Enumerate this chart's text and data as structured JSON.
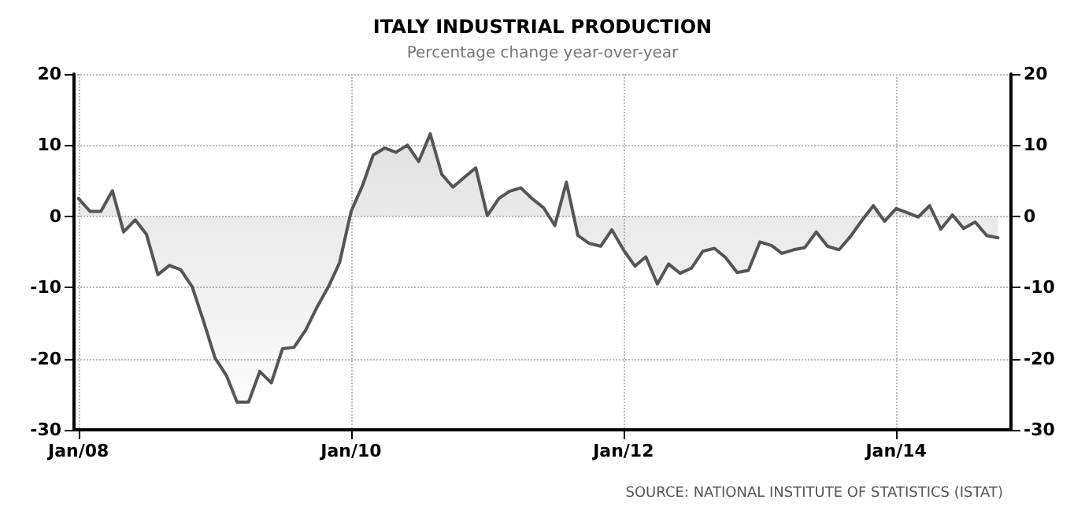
{
  "chart_data": {
    "type": "area",
    "title": "ITALY INDUSTRIAL PRODUCTION",
    "subtitle": "Percentage change year-over-year",
    "annotations": [
      "SOURCE: NATIONAL INSTITUTE OF STATISTICS (ISTAT)"
    ],
    "x": [
      "2008-01",
      "2008-02",
      "2008-03",
      "2008-04",
      "2008-05",
      "2008-06",
      "2008-07",
      "2008-08",
      "2008-09",
      "2008-10",
      "2008-11",
      "2008-12",
      "2009-01",
      "2009-02",
      "2009-03",
      "2009-04",
      "2009-05",
      "2009-06",
      "2009-07",
      "2009-08",
      "2009-09",
      "2009-10",
      "2009-11",
      "2009-12",
      "2010-01",
      "2010-02",
      "2010-03",
      "2010-04",
      "2010-05",
      "2010-06",
      "2010-07",
      "2010-08",
      "2010-09",
      "2010-10",
      "2010-11",
      "2010-12",
      "2011-01",
      "2011-02",
      "2011-03",
      "2011-04",
      "2011-05",
      "2011-06",
      "2011-07",
      "2011-08",
      "2011-09",
      "2011-10",
      "2011-11",
      "2011-12",
      "2012-01",
      "2012-02",
      "2012-03",
      "2012-04",
      "2012-05",
      "2012-06",
      "2012-07",
      "2012-08",
      "2012-09",
      "2012-10",
      "2012-11",
      "2012-12",
      "2013-01",
      "2013-02",
      "2013-03",
      "2013-04",
      "2013-05",
      "2013-06",
      "2013-07",
      "2013-08",
      "2013-09",
      "2013-10",
      "2013-11",
      "2013-12",
      "2014-01",
      "2014-02",
      "2014-03",
      "2014-04",
      "2014-05",
      "2014-06",
      "2014-07",
      "2014-08",
      "2014-09",
      "2014-10"
    ],
    "values": [
      2.5,
      0.7,
      0.7,
      3.6,
      -2.2,
      -0.5,
      -2.5,
      -8.2,
      -6.9,
      -7.5,
      -9.9,
      -14.7,
      -19.9,
      -22.4,
      -26.1,
      -26.1,
      -21.8,
      -23.4,
      -18.6,
      -18.4,
      -16,
      -12.8,
      -9.9,
      -6.5,
      0.7,
      4.4,
      8.6,
      9.6,
      9.0,
      10.0,
      7.7,
      11.6,
      5.9,
      4.1,
      5.5,
      6.8,
      0.1,
      2.5,
      3.5,
      4.0,
      2.5,
      1.2,
      -1.3,
      4.8,
      -2.7,
      -3.8,
      -4.2,
      -1.9,
      -4.7,
      -7.0,
      -5.7,
      -9.5,
      -6.7,
      -8.0,
      -7.3,
      -4.9,
      -4.5,
      -5.8,
      -7.9,
      -7.6,
      -3.6,
      -4.1,
      -5.2,
      -4.7,
      -4.4,
      -2.2,
      -4.2,
      -4.7,
      -2.8,
      -0.6,
      1.5,
      -0.7,
      1.1,
      0.5,
      -0.1,
      1.5,
      -1.8,
      0.2,
      -1.7,
      -0.8,
      -2.7,
      -3.0
    ],
    "color": "#555555",
    "xlim": [
      "2007-12-20",
      "2014-11-05"
    ],
    "xticks": [
      {
        "value": "2008-01",
        "label": "Jan/08"
      },
      {
        "value": "2010-01",
        "label": "Jan/10"
      },
      {
        "value": "2012-01",
        "label": "Jan/12"
      },
      {
        "value": "2014-01",
        "label": "Jan/14"
      }
    ],
    "ylim": [
      -30,
      20
    ],
    "yticks": [
      -30,
      -20,
      -10,
      0,
      10,
      20
    ],
    "y2lim": [
      -30,
      20
    ],
    "y2ticks": [
      -30,
      -20,
      -10,
      0,
      10,
      20
    ],
    "grid": true,
    "marker": "none",
    "line_style": "solid"
  }
}
